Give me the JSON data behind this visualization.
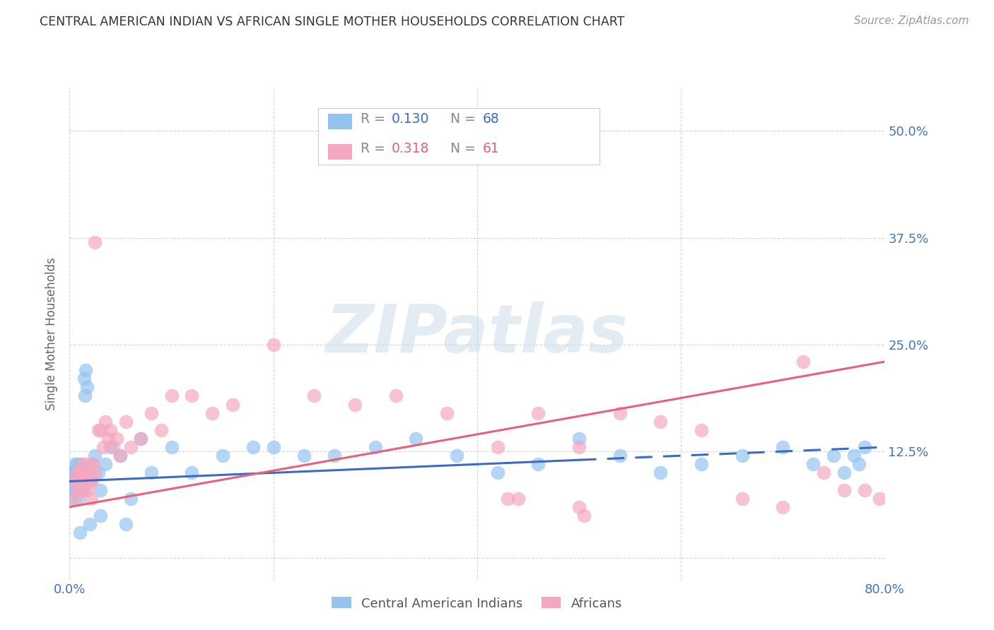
{
  "title": "CENTRAL AMERICAN INDIAN VS AFRICAN SINGLE MOTHER HOUSEHOLDS CORRELATION CHART",
  "source": "Source: ZipAtlas.com",
  "ylabel": "Single Mother Households",
  "xlim": [
    0.0,
    0.8
  ],
  "ylim": [
    -0.025,
    0.55
  ],
  "yticks": [
    0.0,
    0.125,
    0.25,
    0.375,
    0.5
  ],
  "ytick_labels": [
    "",
    "12.5%",
    "25.0%",
    "37.5%",
    "50.0%"
  ],
  "xticks": [
    0.0,
    0.2,
    0.4,
    0.6,
    0.8
  ],
  "xtick_labels": [
    "0.0%",
    "",
    "",
    "",
    "80.0%"
  ],
  "blue_color": "#94C4EE",
  "pink_color": "#F4A8C0",
  "blue_line_color": "#3B6BC4",
  "pink_line_color": "#E8607A",
  "legend_blue_label": "Central American Indians",
  "legend_pink_label": "Africans",
  "R_blue": "0.130",
  "N_blue": "68",
  "R_pink": "0.318",
  "N_pink": "61",
  "background_color": "#ffffff",
  "grid_color": "#cccccc",
  "title_color": "#333333",
  "tick_color": "#4472C4",
  "watermark_color": "#e0e8f0",
  "source_color": "#999999",
  "ylabel_color": "#666666",
  "blue_x": [
    0.001,
    0.002,
    0.002,
    0.003,
    0.003,
    0.004,
    0.004,
    0.005,
    0.005,
    0.006,
    0.006,
    0.007,
    0.007,
    0.008,
    0.008,
    0.009,
    0.009,
    0.01,
    0.01,
    0.011,
    0.011,
    0.012,
    0.012,
    0.013,
    0.014,
    0.015,
    0.016,
    0.017,
    0.018,
    0.02,
    0.022,
    0.025,
    0.028,
    0.03,
    0.035,
    0.04,
    0.05,
    0.055,
    0.06,
    0.07,
    0.08,
    0.1,
    0.12,
    0.15,
    0.18,
    0.2,
    0.23,
    0.26,
    0.3,
    0.34,
    0.38,
    0.42,
    0.46,
    0.5,
    0.54,
    0.58,
    0.62,
    0.66,
    0.7,
    0.73,
    0.75,
    0.76,
    0.77,
    0.775,
    0.78,
    0.01,
    0.02,
    0.03
  ],
  "blue_y": [
    0.09,
    0.07,
    0.1,
    0.08,
    0.09,
    0.1,
    0.08,
    0.09,
    0.11,
    0.08,
    0.1,
    0.09,
    0.11,
    0.08,
    0.1,
    0.09,
    0.07,
    0.1,
    0.08,
    0.09,
    0.11,
    0.08,
    0.1,
    0.09,
    0.21,
    0.19,
    0.22,
    0.2,
    0.1,
    0.09,
    0.11,
    0.12,
    0.1,
    0.08,
    0.11,
    0.13,
    0.12,
    0.04,
    0.07,
    0.14,
    0.1,
    0.13,
    0.1,
    0.12,
    0.13,
    0.13,
    0.12,
    0.12,
    0.13,
    0.14,
    0.12,
    0.1,
    0.11,
    0.14,
    0.12,
    0.1,
    0.11,
    0.12,
    0.13,
    0.11,
    0.12,
    0.1,
    0.12,
    0.11,
    0.13,
    0.03,
    0.04,
    0.05
  ],
  "pink_x": [
    0.003,
    0.005,
    0.007,
    0.008,
    0.009,
    0.01,
    0.011,
    0.012,
    0.013,
    0.014,
    0.015,
    0.016,
    0.017,
    0.018,
    0.019,
    0.02,
    0.021,
    0.022,
    0.023,
    0.025,
    0.025,
    0.028,
    0.03,
    0.033,
    0.035,
    0.038,
    0.04,
    0.043,
    0.046,
    0.05,
    0.055,
    0.06,
    0.07,
    0.08,
    0.09,
    0.1,
    0.12,
    0.14,
    0.16,
    0.2,
    0.24,
    0.28,
    0.32,
    0.37,
    0.42,
    0.46,
    0.5,
    0.54,
    0.58,
    0.62,
    0.66,
    0.7,
    0.72,
    0.74,
    0.76,
    0.78,
    0.795,
    0.43,
    0.44,
    0.5,
    0.505
  ],
  "pink_y": [
    0.09,
    0.07,
    0.1,
    0.08,
    0.09,
    0.1,
    0.08,
    0.09,
    0.11,
    0.08,
    0.1,
    0.09,
    0.11,
    0.08,
    0.1,
    0.09,
    0.07,
    0.09,
    0.11,
    0.37,
    0.1,
    0.15,
    0.15,
    0.13,
    0.16,
    0.14,
    0.15,
    0.13,
    0.14,
    0.12,
    0.16,
    0.13,
    0.14,
    0.17,
    0.15,
    0.19,
    0.19,
    0.17,
    0.18,
    0.25,
    0.19,
    0.18,
    0.19,
    0.17,
    0.13,
    0.17,
    0.13,
    0.17,
    0.16,
    0.15,
    0.07,
    0.06,
    0.23,
    0.1,
    0.08,
    0.08,
    0.07,
    0.07,
    0.07,
    0.06,
    0.05
  ],
  "blue_line_x": [
    0.0,
    0.8
  ],
  "blue_line_y": [
    0.09,
    0.13
  ],
  "pink_line_x": [
    0.0,
    0.8
  ],
  "pink_line_y": [
    0.06,
    0.23
  ]
}
